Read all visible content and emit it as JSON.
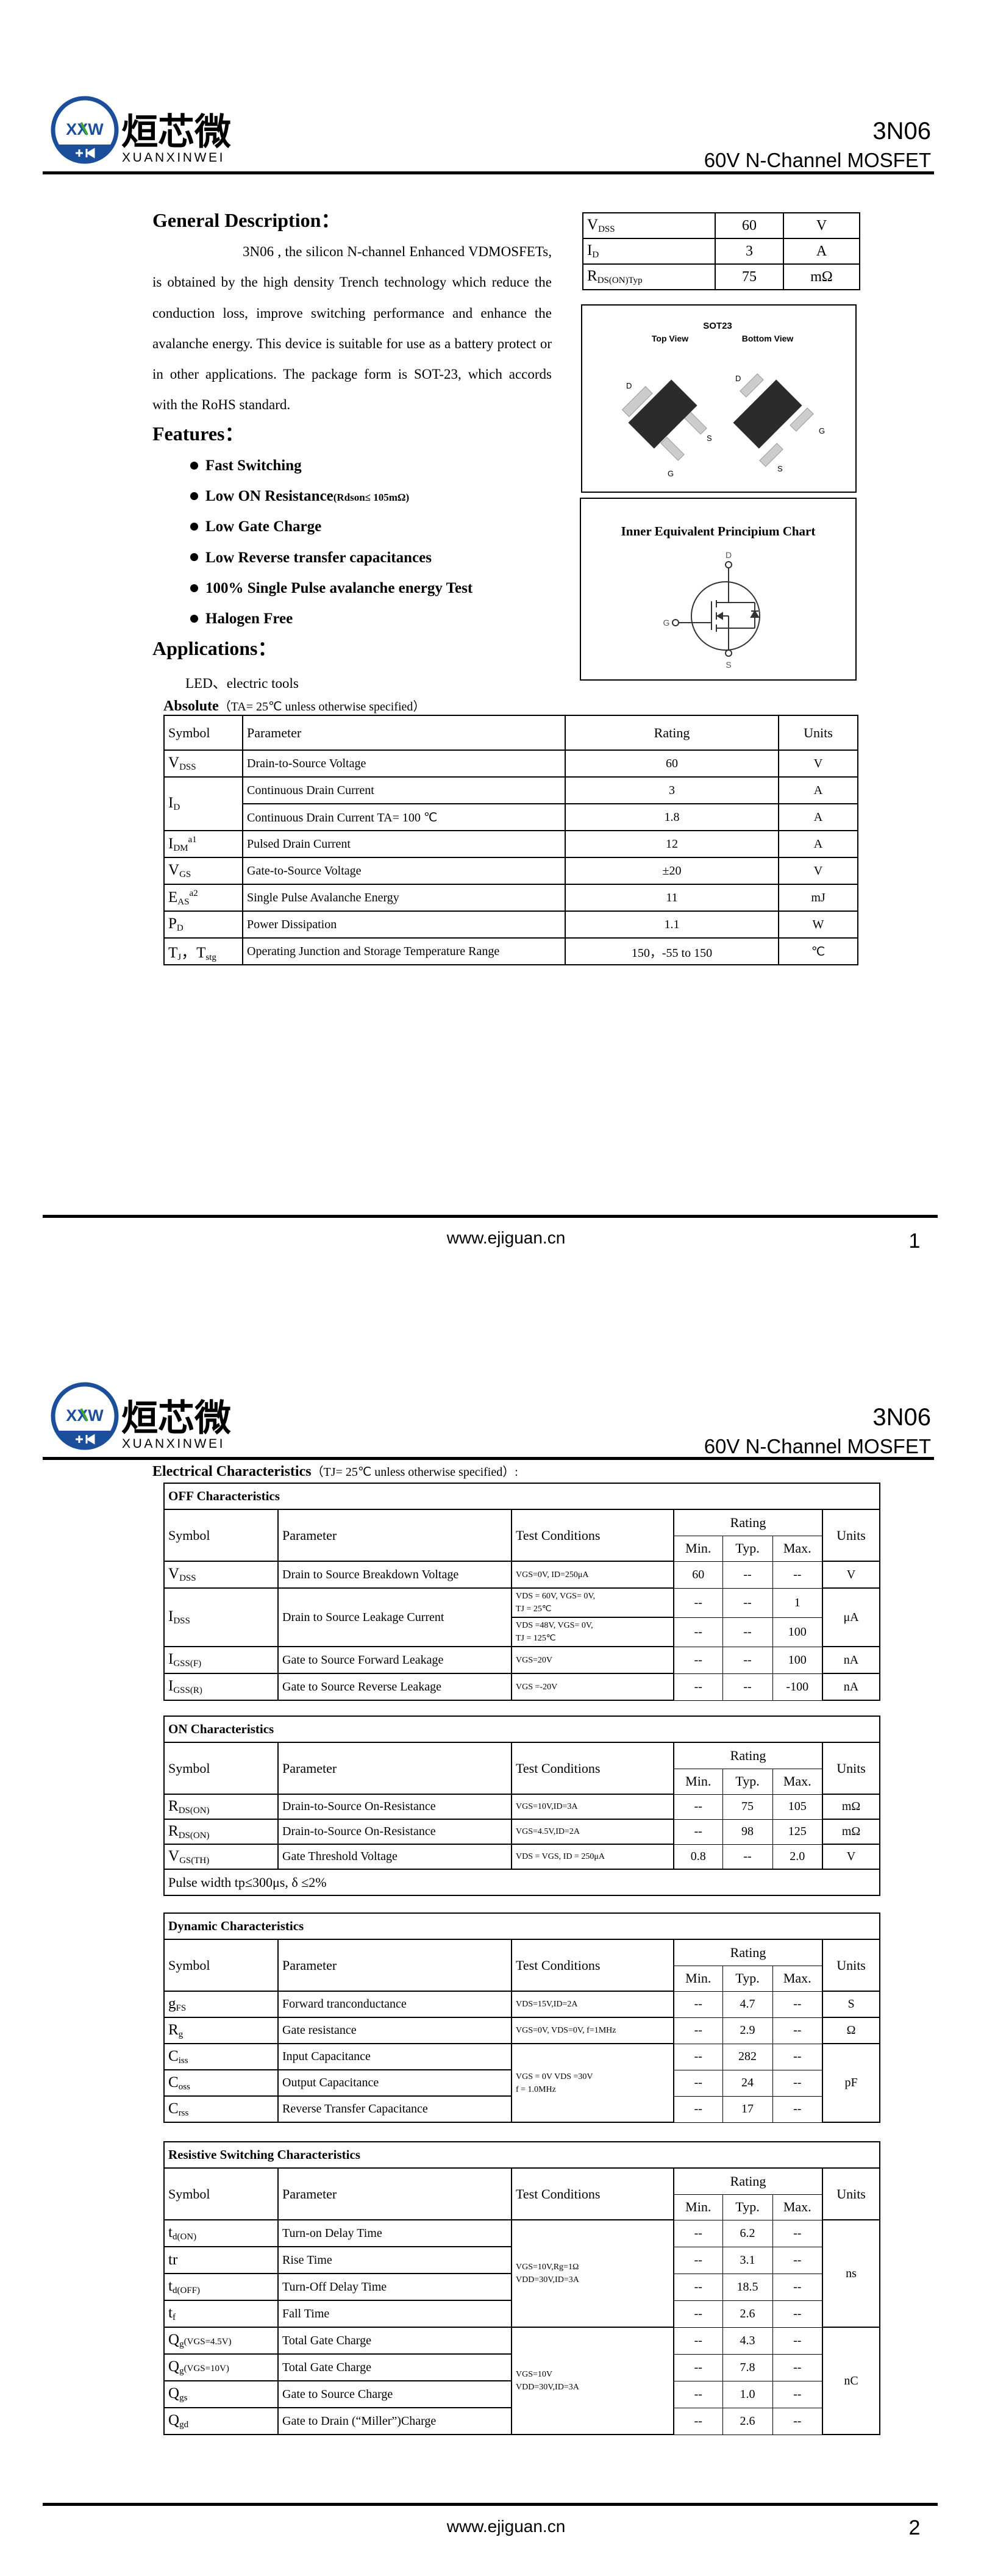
{
  "header": {
    "brand_cn": "烜芯微",
    "brand_en": "XUANXINWEI",
    "logo_letters": "XXW",
    "part": "3N06",
    "subtitle": "60V N-Channel MOSFET",
    "colors": {
      "brand_blue": "#1b4f9c",
      "brand_green": "#3aa53a"
    }
  },
  "general_description": {
    "title": "General Description：",
    "text": "3N06 , the silicon N-channel Enhanced VDMOSFETs, is obtained by the high density Trench technology which reduce the conduction loss, improve switching performance and enhance the avalanche energy. This device is suitable for use as a battery protect or in other applications. The package form is SOT-23, which accords with the RoHS standard."
  },
  "key_specs": [
    {
      "sym": {
        "m": "V",
        "sub": "DSS"
      },
      "value": "60",
      "unit": "V"
    },
    {
      "sym": {
        "m": "I",
        "sub": "D"
      },
      "value": "3",
      "unit": "A"
    },
    {
      "sym": {
        "m": "R",
        "sub": "DS(ON)Typ"
      },
      "value": "75",
      "unit": "mΩ"
    }
  ],
  "package": {
    "title": "SOT23",
    "top_view": "Top View",
    "bottom_view": "Bottom View",
    "pins": {
      "d": "D",
      "s": "S",
      "g": "G"
    }
  },
  "schematic": {
    "title": "Inner Equivalent Principium Chart",
    "pins": {
      "d": "D",
      "g": "G",
      "s": "S"
    }
  },
  "features": {
    "title": "Features：",
    "items": [
      {
        "text": "Fast Switching"
      },
      {
        "text": "Low ON Resistance",
        "note": "(Rdson≤ 105mΩ)"
      },
      {
        "text": "Low Gate Charge"
      },
      {
        "text": "Low Reverse transfer capacitances"
      },
      {
        "text": "100% Single Pulse avalanche energy Test"
      },
      {
        "text": "Halogen Free"
      }
    ]
  },
  "applications": {
    "title": "Applications：",
    "text": "LED、electric tools"
  },
  "absolute": {
    "title": "Absolute",
    "cond": "（TA= 25℃  unless otherwise specified）",
    "headers": {
      "symbol": "Symbol",
      "parameter": "Parameter",
      "rating": "Rating",
      "units": "Units"
    },
    "rows": [
      {
        "sym": {
          "m": "V",
          "sub": "DSS"
        },
        "param": "Drain-to-Source Voltage",
        "rating": "60",
        "unit": "V"
      },
      {
        "sym": {
          "m": "I",
          "sub": "D"
        },
        "param": "Continuous Drain Current",
        "rating": "3",
        "unit": "A"
      },
      {
        "param": "Continuous Drain Current TA= 100 ℃",
        "rating": "1.8",
        "unit": "A"
      },
      {
        "sym": {
          "m": "I",
          "sub": "DM",
          "sup": "a1"
        },
        "param": "Pulsed Drain Current",
        "rating": "12",
        "unit": "A"
      },
      {
        "sym": {
          "m": "V",
          "sub": "GS"
        },
        "param": "Gate-to-Source Voltage",
        "rating": "±20",
        "unit": "V"
      },
      {
        "sym": {
          "m": "E",
          "sub": "AS",
          "sup": "a2"
        },
        "param": "Single Pulse Avalanche Energy",
        "rating": "11",
        "unit": "mJ"
      },
      {
        "sym": {
          "m": "P",
          "sub": "D"
        },
        "param": "Power Dissipation",
        "rating": "1.1",
        "unit": "W"
      },
      {
        "sym": {
          "m": "T",
          "sub": "J",
          "post2": "，T",
          "sub2": "stg"
        },
        "param": "Operating Junction and Storage Temperature Range",
        "rating": "150，-55 to 150",
        "unit": "℃"
      }
    ]
  },
  "electrical": {
    "title": "Electrical Characteristics",
    "cond": "（TJ= 25℃  unless otherwise specified）:",
    "headers": {
      "symbol": "Symbol",
      "parameter": "Parameter",
      "conditions": "Test Conditions",
      "rating": "Rating",
      "min": "Min.",
      "typ": "Typ.",
      "max": "Max.",
      "units": "Units"
    },
    "sections": [
      {
        "title": "OFF Characteristics",
        "rows": [
          {
            "sym": {
              "m": "V",
              "sub": "DSS"
            },
            "param": "Drain to Source Breakdown Voltage",
            "cond": "VGS=0V, ID=250μA",
            "min": "60",
            "typ": "--",
            "max": "--",
            "unit": "V"
          },
          {
            "sym": {
              "m": "I",
              "sub": "DSS"
            },
            "param": "Drain to Source Leakage Current",
            "cond": "VDS = 60V, VGS= 0V,\nTJ = 25℃",
            "min": "--",
            "typ": "--",
            "max": "1",
            "unit": "μA"
          },
          {
            "cond": "VDS =48V, VGS= 0V,\nTJ = 125℃",
            "min": "--",
            "typ": "--",
            "max": "100"
          },
          {
            "sym": {
              "m": "I",
              "sub": "GSS(F)"
            },
            "param": "Gate to Source Forward Leakage",
            "cond": "VGS=20V",
            "min": "--",
            "typ": "--",
            "max": "100",
            "unit": "nA"
          },
          {
            "sym": {
              "m": "I",
              "sub": "GSS(R)"
            },
            "param": "Gate to Source Reverse Leakage",
            "cond": "VGS =-20V",
            "min": "--",
            "typ": "--",
            "max": "-100",
            "unit": "nA"
          }
        ]
      },
      {
        "title": "ON Characteristics",
        "rows": [
          {
            "sym": {
              "m": "R",
              "sub": "DS(ON)"
            },
            "param": "Drain-to-Source On-Resistance",
            "cond": "VGS=10V,ID=3A",
            "min": "--",
            "typ": "75",
            "max": "105",
            "unit": "mΩ"
          },
          {
            "sym": {
              "m": "R",
              "sub": "DS(ON)"
            },
            "param": "Drain-to-Source On-Resistance",
            "cond": "VGS=4.5V,ID=2A",
            "min": "--",
            "typ": "98",
            "max": "125",
            "unit": "mΩ"
          },
          {
            "sym": {
              "m": "V",
              "sub": "GS(TH)"
            },
            "param": "Gate Threshold Voltage",
            "cond": "VDS = VGS, ID = 250μA",
            "min": "0.8",
            "typ": "--",
            "max": "2.0",
            "unit": "V"
          }
        ],
        "note": "Pulse width tp≤300μs, δ ≤2%"
      },
      {
        "title": "Dynamic Characteristics",
        "rows": [
          {
            "sym": {
              "m": "g",
              "sub": "FS"
            },
            "param": "Forward tranconductance",
            "cond": "VDS=15V,ID=2A",
            "min": "--",
            "typ": "4.7",
            "max": "--",
            "unit": "S"
          },
          {
            "sym": {
              "m": "R",
              "sub": "g"
            },
            "param": "Gate resistance",
            "cond": "VGS=0V, VDS=0V, f=1MHz",
            "min": "--",
            "typ": "2.9",
            "max": "--",
            "unit": "Ω"
          },
          {
            "sym": {
              "m": "C",
              "sub": "iss"
            },
            "param": "Input Capacitance",
            "cond": "VGS = 0V VDS =30V\nf = 1.0MHz",
            "min": "--",
            "typ": "282",
            "max": "--",
            "unit": "pF"
          },
          {
            "sym": {
              "m": "C",
              "sub": "oss"
            },
            "param": "Output Capacitance",
            "min": "--",
            "typ": "24",
            "max": "--"
          },
          {
            "sym": {
              "m": "C",
              "sub": "rss"
            },
            "param": "Reverse Transfer Capacitance",
            "min": "--",
            "typ": "17",
            "max": "--"
          }
        ]
      },
      {
        "title": "Resistive Switching Characteristics",
        "rows": [
          {
            "sym": {
              "m": "t",
              "sub": "d(ON)"
            },
            "param": "Turn-on Delay Time",
            "cond": "VGS=10V,Rg=1Ω\nVDD=30V,ID=3A",
            "min": "--",
            "typ": "6.2",
            "max": "--",
            "unit": "ns"
          },
          {
            "sym": {
              "m": "tr"
            },
            "param": "Rise Time",
            "min": "--",
            "typ": "3.1",
            "max": "--"
          },
          {
            "sym": {
              "m": "t",
              "sub": "d(OFF)"
            },
            "param": "Turn-Off Delay Time",
            "min": "--",
            "typ": "18.5",
            "max": "--"
          },
          {
            "sym": {
              "m": "t",
              "sub": "f"
            },
            "param": "Fall Time",
            "min": "--",
            "typ": "2.6",
            "max": "--"
          },
          {
            "sym": {
              "m": "Q",
              "sub": "g",
              "post": "(VGS=4.5V)"
            },
            "param": "Total Gate Charge",
            "cond": "VGS=10V\nVDD=30V,ID=3A",
            "min": "--",
            "typ": "4.3",
            "max": "--",
            "unit": "nC"
          },
          {
            "sym": {
              "m": "Q",
              "sub": "g",
              "post": "(VGS=10V)"
            },
            "param": "Total Gate Charge",
            "min": "--",
            "typ": "7.8",
            "max": "--"
          },
          {
            "sym": {
              "m": "Q",
              "sub": "gs"
            },
            "param": "Gate to Source Charge",
            "min": "--",
            "typ": "1.0",
            "max": "--"
          },
          {
            "sym": {
              "m": "Q",
              "sub": "gd"
            },
            "param": "Gate to Drain (“Miller”)Charge",
            "min": "--",
            "typ": "2.6",
            "max": "--"
          }
        ]
      }
    ]
  },
  "footer": {
    "website": "www.ejiguan.cn",
    "pages": [
      "1",
      "2"
    ]
  }
}
